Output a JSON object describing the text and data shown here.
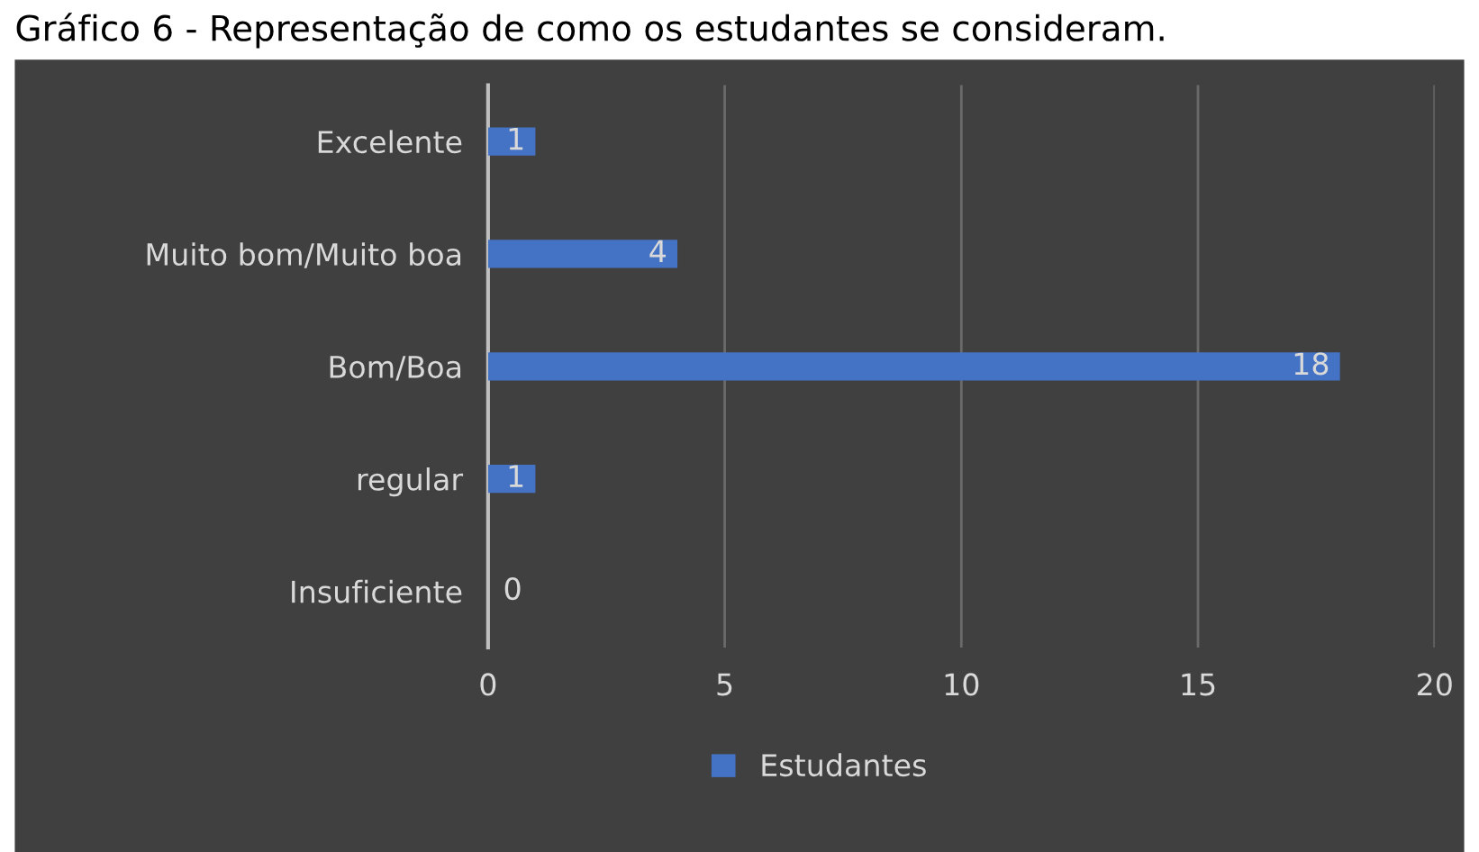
{
  "chart_data": {
    "type": "bar",
    "orientation": "horizontal",
    "title": "Gráfico 6 - Representação de como os estudantes se consideram.",
    "categories": [
      "Excelente",
      "Muito bom/Muito boa",
      "Bom/Boa",
      "regular",
      "Insuficiente"
    ],
    "series": [
      {
        "name": "Estudantes",
        "color": "#4472c4",
        "values": [
          1,
          4,
          18,
          1,
          0
        ]
      }
    ],
    "xlim": [
      0,
      20
    ],
    "xticks": [
      0,
      5,
      10,
      15,
      20
    ],
    "grid": "x",
    "legend": "bottom",
    "data_labels": true
  }
}
